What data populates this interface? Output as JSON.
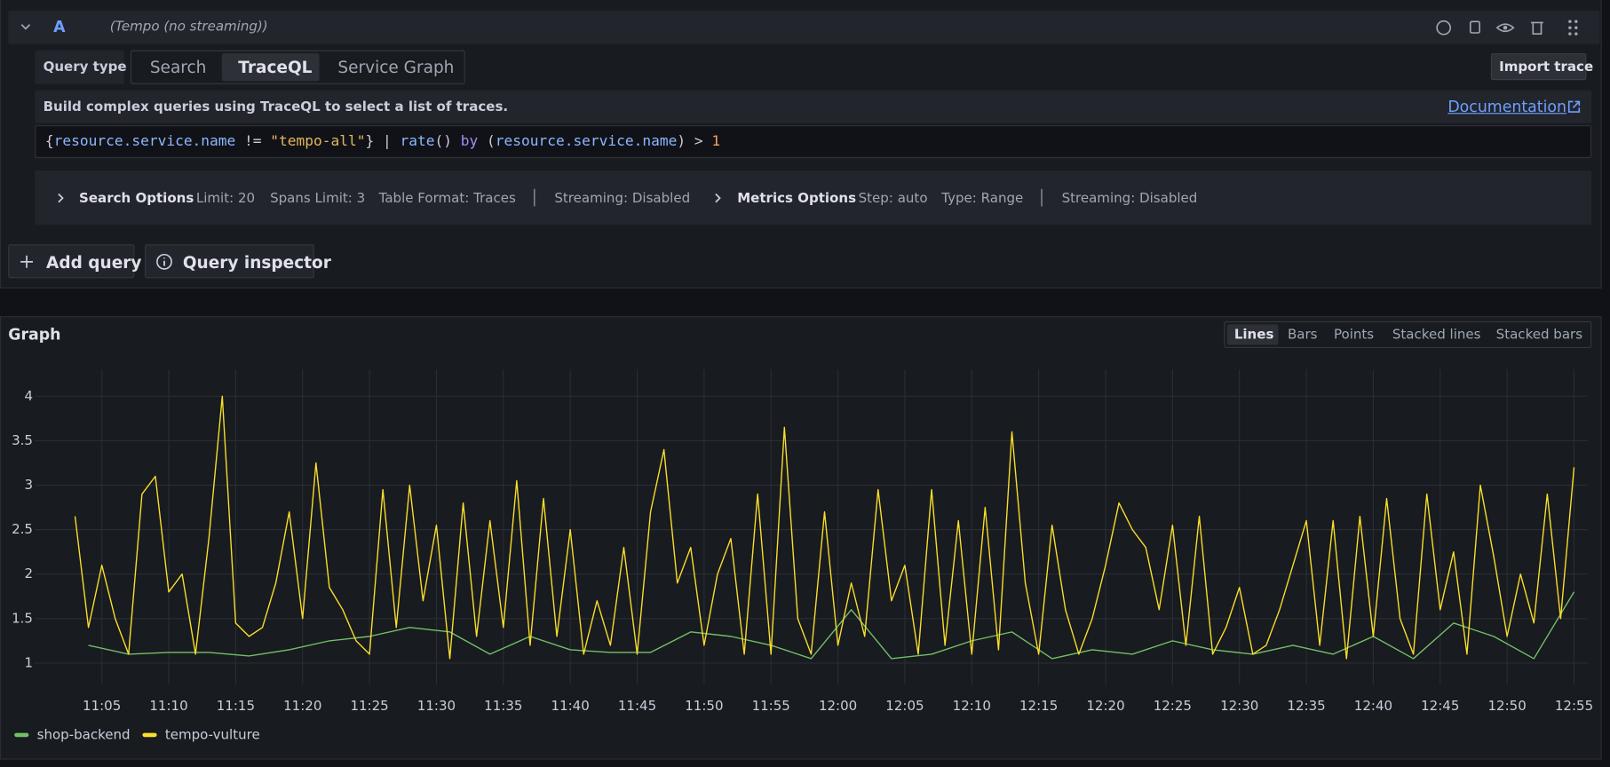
{
  "query_row": {
    "letter": "A",
    "datasource": "(Tempo (no streaming))"
  },
  "query_type": {
    "label": "Query type",
    "tabs": [
      "Search",
      "TraceQL",
      "Service Graph"
    ]
  },
  "import_button": "Import trace",
  "help_text": "Build complex queries using TraceQL to select a list of traces.",
  "doc_link": "Documentation",
  "query": {
    "tokens": [
      "{",
      "resource.service.name",
      " != ",
      "\"tempo-all\"",
      "}",
      " | ",
      "rate",
      "()",
      " by ",
      "(",
      "resource.service.name",
      ")",
      " > ",
      "1"
    ]
  },
  "search_options": {
    "title": "Search Options",
    "items": [
      "Limit: 20",
      "Spans Limit: 3",
      "Table Format: Traces",
      "Streaming: Disabled"
    ]
  },
  "metrics_options": {
    "title": "Metrics Options",
    "items": [
      "Step: auto",
      "Type: Range",
      "Streaming: Disabled"
    ]
  },
  "buttons": [
    "Add query",
    "Query inspector"
  ],
  "graph_view_options": [
    "Lines",
    "Bars",
    "Points",
    "Stacked lines",
    "Stacked bars"
  ],
  "chart_data": {
    "type": "line",
    "title": "Graph",
    "xlim": [
      "11:00",
      "12:56"
    ],
    "xticks": [
      "11:05",
      "11:10",
      "11:15",
      "11:20",
      "11:25",
      "11:30",
      "11:35",
      "11:40",
      "11:45",
      "11:50",
      "11:55",
      "12:00",
      "12:05",
      "12:10",
      "12:15",
      "12:20",
      "12:25",
      "12:30",
      "12:35",
      "12:40",
      "12:45",
      "12:50",
      "12:55"
    ],
    "ylim": [
      0.85,
      4.3
    ],
    "yticks": [
      1,
      1.5,
      2,
      2.5,
      3,
      3.5,
      4
    ],
    "grid": true,
    "series": [
      {
        "name": "shop-backend",
        "color": "#73bf69",
        "x": [
          "11:04",
          "11:07",
          "11:10",
          "11:13",
          "11:16",
          "11:19",
          "11:22",
          "11:25",
          "11:28",
          "11:31",
          "11:34",
          "11:37",
          "11:40",
          "11:43",
          "11:46",
          "11:49",
          "11:52",
          "11:55",
          "11:58",
          "12:01",
          "12:04",
          "12:07",
          "12:10",
          "12:13",
          "12:16",
          "12:19",
          "12:22",
          "12:25",
          "12:28",
          "12:31",
          "12:34",
          "12:37",
          "12:40",
          "12:43",
          "12:46",
          "12:49",
          "12:52",
          "12:55"
        ],
        "values": [
          1.2,
          1.1,
          1.12,
          1.12,
          1.08,
          1.15,
          1.25,
          1.3,
          1.4,
          1.35,
          1.1,
          1.3,
          1.15,
          1.12,
          1.12,
          1.35,
          1.3,
          1.2,
          1.05,
          1.6,
          1.05,
          1.1,
          1.25,
          1.35,
          1.05,
          1.15,
          1.1,
          1.25,
          1.15,
          1.1,
          1.2,
          1.1,
          1.3,
          1.05,
          1.45,
          1.3,
          1.05,
          1.8
        ]
      },
      {
        "name": "tempo-vulture",
        "color": "#fade2a",
        "x": [
          "11:03",
          "11:04",
          "11:05",
          "11:06",
          "11:07",
          "11:08",
          "11:09",
          "11:10",
          "11:11",
          "11:12",
          "11:13",
          "11:14",
          "11:15",
          "11:16",
          "11:17",
          "11:18",
          "11:19",
          "11:20",
          "11:21",
          "11:22",
          "11:23",
          "11:24",
          "11:25",
          "11:26",
          "11:27",
          "11:28",
          "11:29",
          "11:30",
          "11:31",
          "11:32",
          "11:33",
          "11:34",
          "11:35",
          "11:36",
          "11:37",
          "11:38",
          "11:39",
          "11:40",
          "11:41",
          "11:42",
          "11:43",
          "11:44",
          "11:45",
          "11:46",
          "11:47",
          "11:48",
          "11:49",
          "11:50",
          "11:51",
          "11:52",
          "11:53",
          "11:54",
          "11:55",
          "11:56",
          "11:57",
          "11:58",
          "11:59",
          "12:00",
          "12:01",
          "12:02",
          "12:03",
          "12:04",
          "12:05",
          "12:06",
          "12:07",
          "12:08",
          "12:09",
          "12:10",
          "12:11",
          "12:12",
          "12:13",
          "12:14",
          "12:15",
          "12:16",
          "12:17",
          "12:18",
          "12:19",
          "12:20",
          "12:21",
          "12:22",
          "12:23",
          "12:24",
          "12:25",
          "12:26",
          "12:27",
          "12:28",
          "12:29",
          "12:30",
          "12:31",
          "12:32",
          "12:33",
          "12:34",
          "12:35",
          "12:36",
          "12:37",
          "12:38",
          "12:39",
          "12:40",
          "12:41",
          "12:42",
          "12:43",
          "12:44",
          "12:45",
          "12:46",
          "12:47",
          "12:48",
          "12:49",
          "12:50",
          "12:51",
          "12:52",
          "12:53",
          "12:54",
          "12:55"
        ],
        "values": [
          2.65,
          1.4,
          2.1,
          1.5,
          1.1,
          2.9,
          3.1,
          1.8,
          2.0,
          1.1,
          2.4,
          4.0,
          1.45,
          1.3,
          1.4,
          1.9,
          2.7,
          1.5,
          3.25,
          1.85,
          1.6,
          1.25,
          1.1,
          2.95,
          1.4,
          3.0,
          1.7,
          2.55,
          1.05,
          2.8,
          1.3,
          2.6,
          1.4,
          3.05,
          1.2,
          2.85,
          1.3,
          2.5,
          1.1,
          1.7,
          1.2,
          2.3,
          1.1,
          2.7,
          3.4,
          1.9,
          2.3,
          1.2,
          2.0,
          2.4,
          1.1,
          2.9,
          1.1,
          3.65,
          1.5,
          1.1,
          2.7,
          1.2,
          1.9,
          1.3,
          2.95,
          1.7,
          2.1,
          1.1,
          2.95,
          1.2,
          2.6,
          1.1,
          2.75,
          1.15,
          3.6,
          1.9,
          1.1,
          2.55,
          1.6,
          1.1,
          1.5,
          2.1,
          2.8,
          2.5,
          2.3,
          1.6,
          2.55,
          1.2,
          2.65,
          1.1,
          1.4,
          1.85,
          1.1,
          1.2,
          1.6,
          2.1,
          2.6,
          1.2,
          2.6,
          1.05,
          2.65,
          1.3,
          2.85,
          1.5,
          1.1,
          2.9,
          1.6,
          2.25,
          1.1,
          3.0,
          2.2,
          1.3,
          2.0,
          1.45,
          2.9,
          1.5,
          3.2
        ]
      }
    ]
  }
}
